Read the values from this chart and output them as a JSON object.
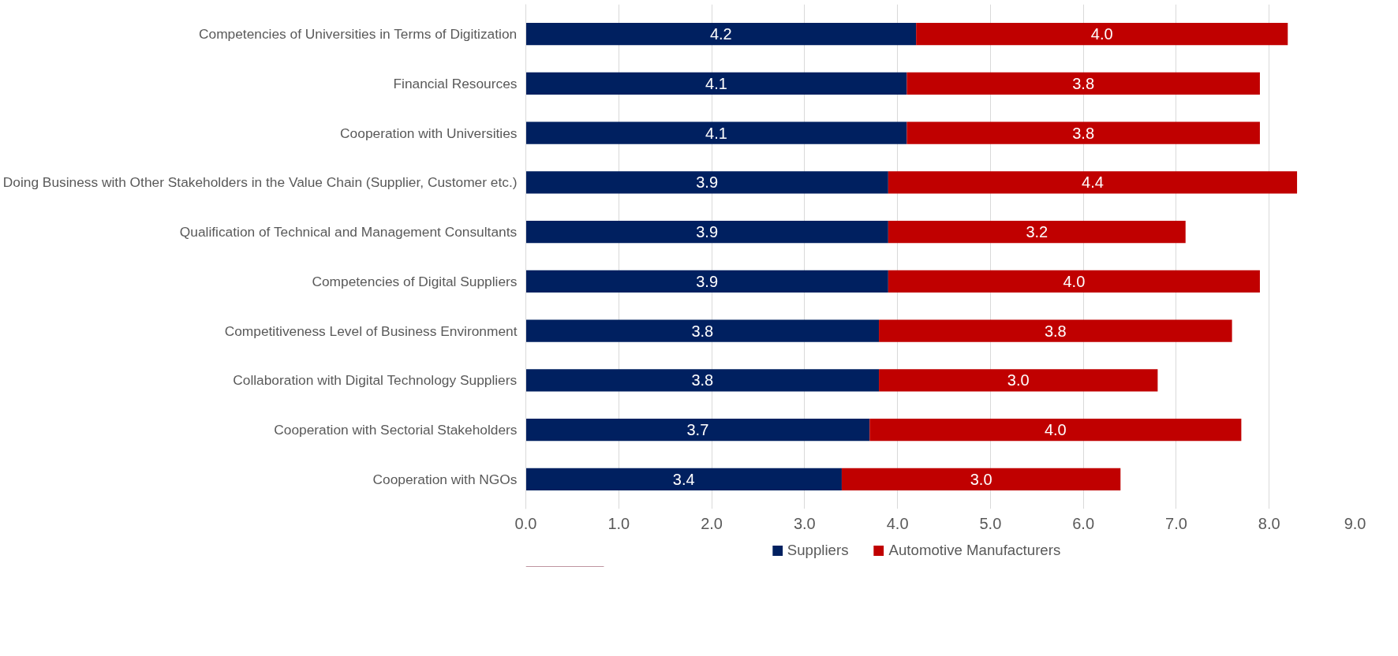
{
  "chart_data": {
    "type": "bar",
    "orientation": "horizontal",
    "stacked": true,
    "grid": "x",
    "legend": "bottom",
    "categories": [
      "Competencies of Universities in Terms of Digitization",
      "Financial Resources",
      "Cooperation with Universities",
      "Doing Business with Other Stakeholders in the Value Chain (Supplier, Customer etc.)",
      "Qualification of Technical and Management Consultants",
      "Competencies of Digital Suppliers",
      "Competitiveness Level of Business Environment",
      "Collaboration with Digital Technology Suppliers",
      "Cooperation with Sectorial Stakeholders",
      "Cooperation with NGOs"
    ],
    "series": [
      {
        "name": "Suppliers",
        "color": "#002060",
        "values": [
          4.2,
          4.1,
          4.1,
          3.9,
          3.9,
          3.9,
          3.8,
          3.8,
          3.7,
          3.4
        ],
        "value_labels": [
          "4.2",
          "4.1",
          "4.1",
          "3.9",
          "3.9",
          "3.9",
          "3.8",
          "3.8",
          "3.7",
          "3.4"
        ]
      },
      {
        "name": "Automotive Manufacturers",
        "color": "#c00000",
        "values": [
          4.0,
          3.8,
          3.8,
          4.4,
          3.2,
          4.0,
          3.8,
          3.0,
          4.0,
          3.0
        ],
        "value_labels": [
          "4.0",
          "3.8",
          "3.8",
          "4.4",
          "3.2",
          "4.0",
          "3.8",
          "3.0",
          "4.0",
          "3.0"
        ]
      }
    ],
    "xlim": [
      0,
      9
    ],
    "xticks": [
      {
        "value": 0,
        "label": "0.0"
      },
      {
        "value": 1,
        "label": "1.0"
      },
      {
        "value": 2,
        "label": "2.0"
      },
      {
        "value": 3,
        "label": "3.0"
      },
      {
        "value": 4,
        "label": "4.0"
      },
      {
        "value": 5,
        "label": "5.0"
      },
      {
        "value": 6,
        "label": "6.0"
      },
      {
        "value": 7,
        "label": "7.0"
      },
      {
        "value": 8,
        "label": "8.0"
      },
      {
        "value": 9,
        "label": "9.0"
      }
    ]
  }
}
